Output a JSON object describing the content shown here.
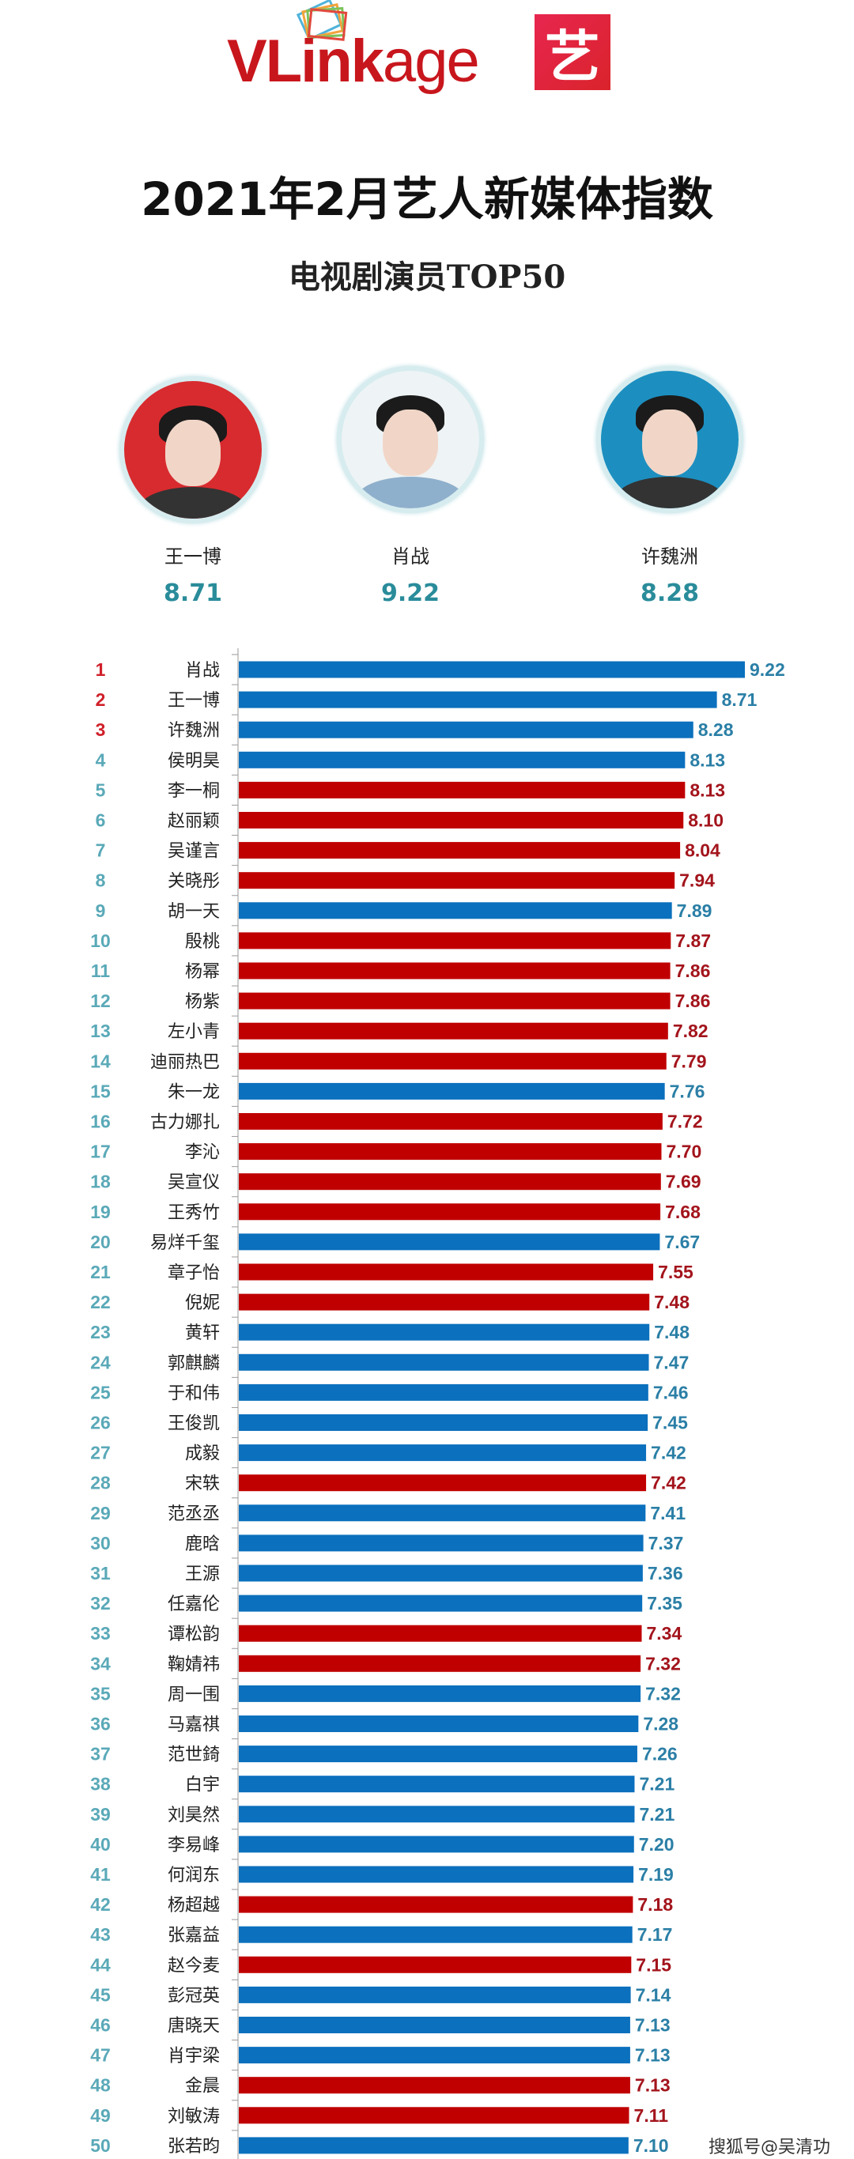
{
  "header": {
    "logo_bold": "VLink",
    "logo_thin": "age",
    "badge_char": "艺",
    "title": "2021年2月艺人新媒体指数",
    "subtitle": "电视剧演员TOP50"
  },
  "podium": [
    {
      "name": "王一博",
      "score": "8.71",
      "bg": "#d82b2f"
    },
    {
      "name": "肖战",
      "score": "9.22",
      "bg": "#eef3f5"
    },
    {
      "name": "许魏洲",
      "score": "8.28",
      "bg": "#1c8fc0"
    }
  ],
  "colors": {
    "male": "#0b70bd",
    "female": "#c00000",
    "rank_top": "#d0202a",
    "rank_other": "#5aa9b8",
    "label_male": "#2b7fa6",
    "label_female": "#a3141c"
  },
  "watermark": "搜狐号@吴清功",
  "chart_data": {
    "type": "bar",
    "orientation": "horizontal",
    "xlim": [
      0,
      9.22
    ],
    "grid": false,
    "categories": [
      "肖战",
      "王一博",
      "许魏洲",
      "侯明昊",
      "李一桐",
      "赵丽颖",
      "吴谨言",
      "关晓彤",
      "胡一天",
      "殷桃",
      "杨幂",
      "杨紫",
      "左小青",
      "迪丽热巴",
      "朱一龙",
      "古力娜扎",
      "李沁",
      "吴宣仪",
      "王秀竹",
      "易烊千玺",
      "章子怡",
      "倪妮",
      "黄轩",
      "郭麒麟",
      "于和伟",
      "王俊凯",
      "成毅",
      "宋轶",
      "范丞丞",
      "鹿晗",
      "王源",
      "任嘉伦",
      "谭松韵",
      "鞠婧祎",
      "周一围",
      "马嘉祺",
      "范世錡",
      "白宇",
      "刘昊然",
      "李易峰",
      "何润东",
      "杨超越",
      "张嘉益",
      "赵今麦",
      "彭冠英",
      "唐晓天",
      "肖宇梁",
      "金晨",
      "刘敏涛",
      "张若昀"
    ],
    "values": [
      9.22,
      8.71,
      8.28,
      8.13,
      8.13,
      8.1,
      8.04,
      7.94,
      7.89,
      7.87,
      7.86,
      7.86,
      7.82,
      7.79,
      7.76,
      7.72,
      7.7,
      7.69,
      7.68,
      7.67,
      7.55,
      7.48,
      7.48,
      7.47,
      7.46,
      7.45,
      7.42,
      7.42,
      7.41,
      7.37,
      7.36,
      7.35,
      7.34,
      7.32,
      7.32,
      7.28,
      7.26,
      7.21,
      7.21,
      7.2,
      7.19,
      7.18,
      7.17,
      7.15,
      7.14,
      7.13,
      7.13,
      7.13,
      7.11,
      7.1
    ],
    "labels": [
      "9.22",
      "8.71",
      "8.28",
      "8.13",
      "8.13",
      "8.10",
      "8.04",
      "7.94",
      "7.89",
      "7.87",
      "7.86",
      "7.86",
      "7.82",
      "7.79",
      "7.76",
      "7.72",
      "7.70",
      "7.69",
      "7.68",
      "7.67",
      "7.55",
      "7.48",
      "7.48",
      "7.47",
      "7.46",
      "7.45",
      "7.42",
      "7.42",
      "7.41",
      "7.37",
      "7.36",
      "7.35",
      "7.34",
      "7.32",
      "7.32",
      "7.28",
      "7.26",
      "7.21",
      "7.21",
      "7.20",
      "7.19",
      "7.18",
      "7.17",
      "7.15",
      "7.14",
      "7.13",
      "7.13",
      "7.13",
      "7.11",
      "7.10"
    ],
    "genders": [
      "m",
      "m",
      "m",
      "m",
      "f",
      "f",
      "f",
      "f",
      "m",
      "f",
      "f",
      "f",
      "f",
      "f",
      "m",
      "f",
      "f",
      "f",
      "f",
      "m",
      "f",
      "f",
      "m",
      "m",
      "m",
      "m",
      "m",
      "f",
      "m",
      "m",
      "m",
      "m",
      "f",
      "f",
      "m",
      "m",
      "m",
      "m",
      "m",
      "m",
      "m",
      "f",
      "m",
      "f",
      "m",
      "m",
      "m",
      "f",
      "f",
      "m"
    ]
  }
}
